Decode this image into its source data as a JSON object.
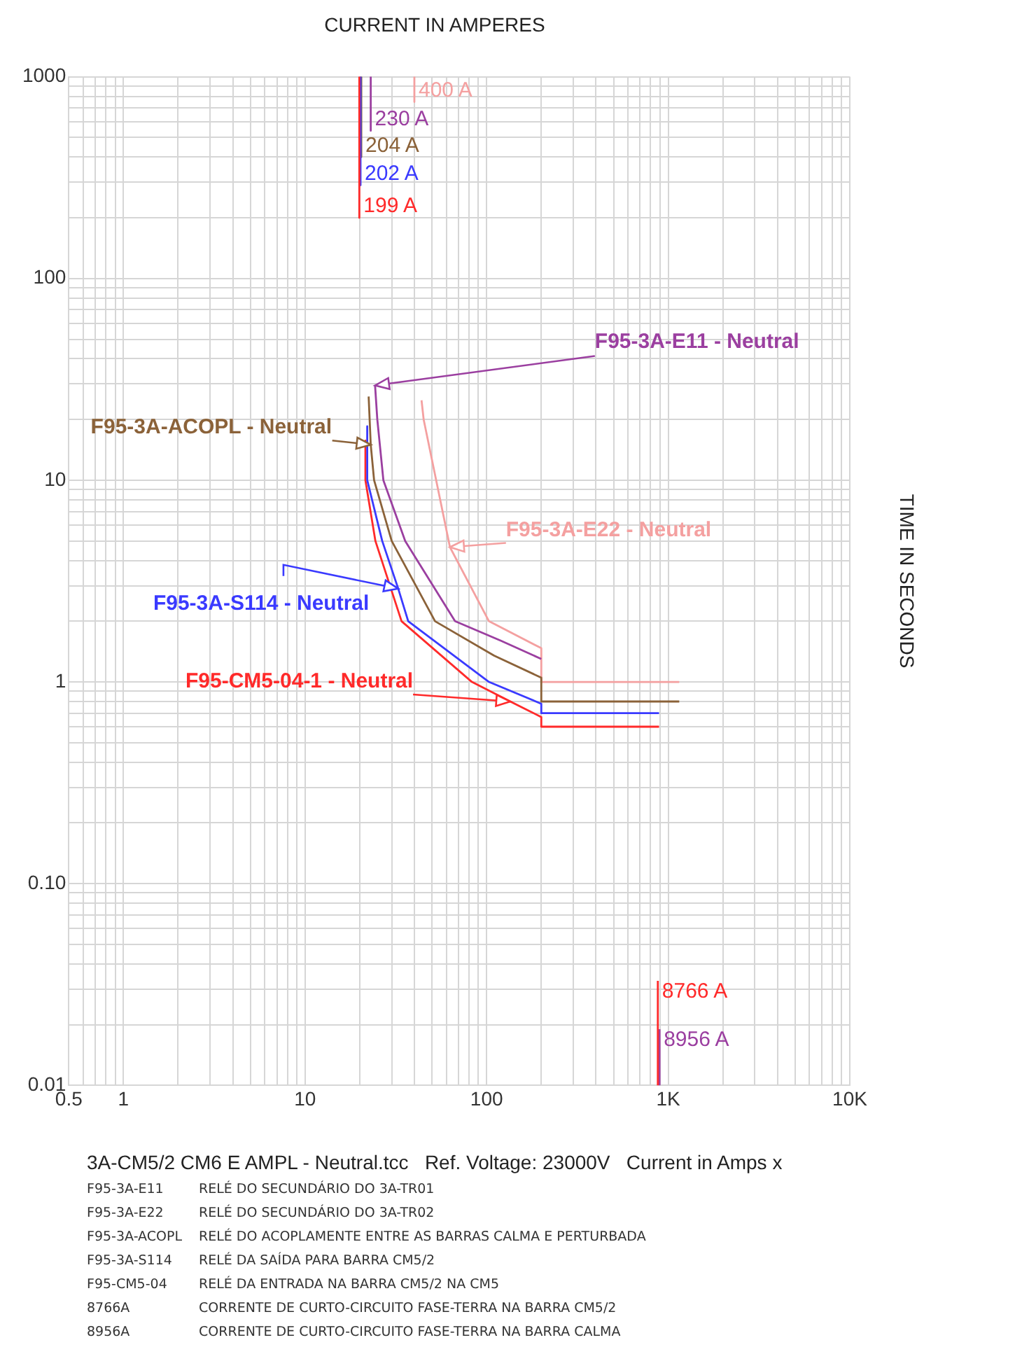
{
  "chart_data": {
    "type": "line",
    "xlabel": "CURRENT IN AMPERES",
    "ylabel": "TIME IN SECONDS",
    "log": "xy",
    "grid": true,
    "legend": false,
    "marker": "none",
    "line_style": "solid",
    "xlim": [
      0.5,
      10000
    ],
    "xticks": [
      0.5,
      {
        "value": 0.6,
        "label": null
      },
      {
        "value": 0.7,
        "label": null
      },
      {
        "value": 0.8,
        "label": null
      },
      {
        "value": 0.9,
        "label": null
      },
      1,
      {
        "value": 2,
        "label": null
      },
      {
        "value": 3,
        "label": null
      },
      {
        "value": 4,
        "label": null
      },
      {
        "value": 5,
        "label": null
      },
      {
        "value": 6,
        "label": null
      },
      {
        "value": 7,
        "label": null
      },
      {
        "value": 8,
        "label": null
      },
      {
        "value": 9,
        "label": null
      },
      10,
      {
        "value": 20,
        "label": null
      },
      {
        "value": 30,
        "label": null
      },
      {
        "value": 40,
        "label": null
      },
      {
        "value": 50,
        "label": null
      },
      {
        "value": 60,
        "label": null
      },
      {
        "value": 70,
        "label": null
      },
      {
        "value": 80,
        "label": null
      },
      {
        "value": 90,
        "label": null
      },
      100,
      {
        "value": 200,
        "label": null
      },
      {
        "value": 300,
        "label": null
      },
      {
        "value": 400,
        "label": null
      },
      {
        "value": 500,
        "label": null
      },
      {
        "value": 600,
        "label": null
      },
      {
        "value": 700,
        "label": null
      },
      {
        "value": 800,
        "label": null
      },
      {
        "value": 900,
        "label": null
      },
      {
        "value": 1000,
        "label": "1K"
      },
      {
        "value": 2000,
        "label": null
      },
      {
        "value": 3000,
        "label": null
      },
      {
        "value": 4000,
        "label": null
      },
      {
        "value": 5000,
        "label": null
      },
      {
        "value": 6000,
        "label": null
      },
      {
        "value": 7000,
        "label": null
      },
      {
        "value": 8000,
        "label": null
      },
      {
        "value": 9000,
        "label": null
      },
      {
        "value": 10000,
        "label": "10K"
      }
    ],
    "ylim": [
      0.01,
      1000
    ],
    "yticks": [
      0.01,
      {
        "value": 0.02,
        "label": null
      },
      {
        "value": 0.03,
        "label": null
      },
      {
        "value": 0.04,
        "label": null
      },
      {
        "value": 0.05,
        "label": null
      },
      {
        "value": 0.06,
        "label": null
      },
      {
        "value": 0.07,
        "label": null
      },
      {
        "value": 0.08,
        "label": null
      },
      {
        "value": 0.09,
        "label": null
      },
      {
        "value": 0.1,
        "label": "0.10"
      },
      {
        "value": 0.2,
        "label": null
      },
      {
        "value": 0.3,
        "label": null
      },
      {
        "value": 0.4,
        "label": null
      },
      {
        "value": 0.5,
        "label": null
      },
      {
        "value": 0.6,
        "label": null
      },
      {
        "value": 0.7,
        "label": null
      },
      {
        "value": 0.8,
        "label": null
      },
      {
        "value": 0.9,
        "label": null
      },
      1,
      {
        "value": 2,
        "label": null
      },
      {
        "value": 3,
        "label": null
      },
      {
        "value": 4,
        "label": null
      },
      {
        "value": 5,
        "label": null
      },
      {
        "value": 6,
        "label": null
      },
      {
        "value": 7,
        "label": null
      },
      {
        "value": 8,
        "label": null
      },
      {
        "value": 9,
        "label": null
      },
      10,
      {
        "value": 20,
        "label": null
      },
      {
        "value": 30,
        "label": null
      },
      {
        "value": 40,
        "label": null
      },
      {
        "value": 50,
        "label": null
      },
      {
        "value": 60,
        "label": null
      },
      {
        "value": 70,
        "label": null
      },
      {
        "value": 80,
        "label": null
      },
      {
        "value": 90,
        "label": null
      },
      100,
      {
        "value": 200,
        "label": null
      },
      {
        "value": 300,
        "label": null
      },
      {
        "value": 400,
        "label": null
      },
      {
        "value": 500,
        "label": null
      },
      {
        "value": 600,
        "label": null
      },
      {
        "value": 700,
        "label": null
      },
      {
        "value": 800,
        "label": null
      },
      {
        "value": 900,
        "label": null
      },
      1000
    ],
    "series": [
      {
        "name": "F95-3A-E11 - Neutral",
        "color": "#9b3fa0",
        "x": [
          24.3,
          25,
          27,
          35.6,
          67,
          120,
          200
        ],
        "values": [
          29.5,
          20,
          10,
          5,
          2,
          1.6,
          1.3
        ]
      },
      {
        "name": "F95-3A-ACOPL - Neutral",
        "color": "#8b6239",
        "x": [
          22.4,
          23,
          24,
          30,
          52,
          110,
          200,
          200,
          1150
        ],
        "values": [
          26,
          15,
          10,
          5,
          2,
          1.35,
          1.05,
          0.8,
          0.8
        ]
      },
      {
        "name": "F95-3A-E22 - Neutral",
        "color": "#f4a0a0",
        "x": [
          43.8,
          45,
          62.8,
          103,
          200,
          200,
          1150
        ],
        "values": [
          24.9,
          20,
          4.66,
          2,
          1.47,
          1,
          1
        ]
      },
      {
        "name": "F95-3A-S114 - Neutral",
        "color": "#3a3aff",
        "x": [
          22,
          22,
          26.6,
          32.6,
          37,
          103,
          200,
          200,
          890
        ],
        "values": [
          18.5,
          10,
          5,
          2.9,
          2,
          1,
          0.78,
          0.7,
          0.7
        ]
      },
      {
        "name": "F95-CM5-04-1 - Neutral",
        "color": "#ff2a2a",
        "x": [
          21.5,
          21.5,
          24.4,
          34,
          83,
          135,
          200,
          200,
          890
        ],
        "values": [
          15.7,
          10,
          5,
          2,
          1,
          0.8,
          0.67,
          0.6,
          0.6
        ]
      },
      {
        "name": "199 A",
        "color": "#ff2a2a",
        "x": [
          19.9,
          19.9
        ],
        "values": [
          1000,
          200
        ]
      },
      {
        "name": "202 A",
        "color": "#3a3aff",
        "x": [
          20.2,
          20.2
        ],
        "values": [
          1000,
          290
        ]
      },
      {
        "name": "204 A",
        "color": "#8b6239",
        "x": [
          20.4,
          20.4
        ],
        "values": [
          1000,
          400
        ]
      },
      {
        "name": "230 A",
        "color": "#9b3fa0",
        "x": [
          23,
          23
        ],
        "values": [
          1000,
          540
        ]
      },
      {
        "name": "400 A",
        "color": "#f4a0a0",
        "x": [
          40,
          40
        ],
        "values": [
          1000,
          750
        ]
      },
      {
        "name": "8766 A",
        "color": "#ff2a2a",
        "x": [
          876.6,
          876.6
        ],
        "values": [
          0.01,
          0.033
        ]
      },
      {
        "name": "8956 A",
        "color": "#9b3fa0",
        "x": [
          895.6,
          895.6
        ],
        "values": [
          0.01,
          0.019
        ]
      }
    ],
    "annotations": [
      "3A-CM5/2 CM6 E AMPL - Neutral.tcc   Ref. Voltage: 23000V   Current in Amps x",
      "F95-3A-E11  RELÉ DO SECUNDÁRIO DO 3A-TR01",
      "F95-3A-E22  RELÉ DO SECUNDÁRIO DO 3A-TR02",
      "F95-3A-ACOPL  RELÉ DO ACOPLAMENTE ENTRE AS BARRAS CALMA E PERTURBADA",
      "F95-3A-S114  RELÉ DA SAÍDA PARA BARRA CM5/2",
      "F95-CM5-04  RELÉ DA ENTRADA NA BARRA CM5/2 NA CM5",
      "8766A  CORRENTE DE CURTO-CIRCUITO  FASE-TERRA NA BARRA CM5/2",
      "8956A  CORRENTE DE CURTO-CIRCUITO  FASE-TERRA NA BARRA CALMA"
    ]
  }
}
